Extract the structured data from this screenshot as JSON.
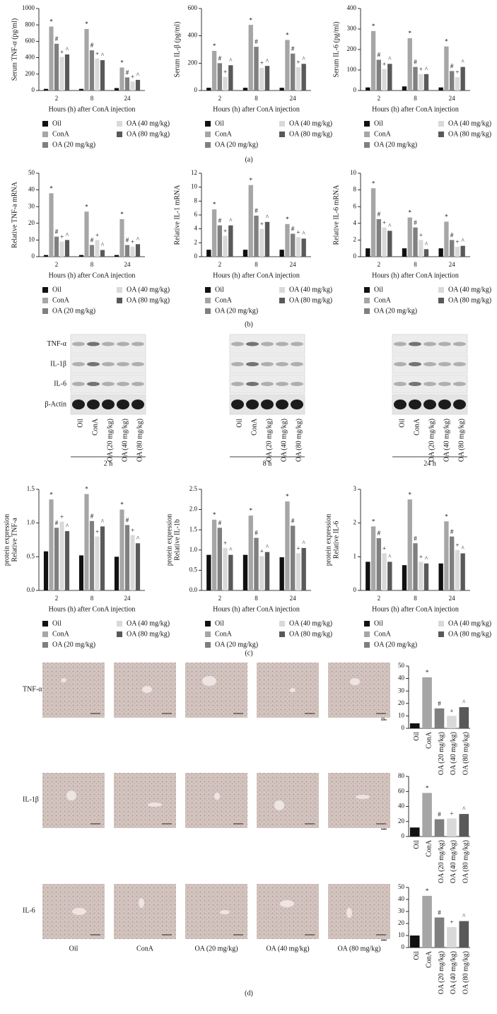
{
  "chart_data": [
    {
      "type": "bar",
      "ylabel": [
        "Serum TNF-α (pg/ml)"
      ],
      "xlabel": "Hours (h) after ConA injection",
      "categories": [
        "2",
        "8",
        "24"
      ],
      "ylim": [
        0,
        1000
      ],
      "yticks": [
        0,
        200,
        400,
        600,
        800,
        1000
      ],
      "series": [
        {
          "name": "Oil",
          "color": "#111111",
          "values": [
            20,
            20,
            30
          ]
        },
        {
          "name": "ConA",
          "color": "#a6a6a6",
          "values": [
            780,
            750,
            280
          ],
          "annotation": "*"
        },
        {
          "name": "OA (20 mg/kg)",
          "color": "#7f7f7f",
          "values": [
            570,
            490,
            160
          ],
          "annotation": "#"
        },
        {
          "name": "OA (40 mg/kg)",
          "color": "#d9d9d9",
          "values": [
            410,
            390,
            110
          ],
          "annotation": "+"
        },
        {
          "name": "OA (80 mg/kg)",
          "color": "#595959",
          "values": [
            440,
            370,
            130
          ],
          "annotation": "^"
        }
      ]
    },
    {
      "type": "bar",
      "ylabel": [
        "Serum IL-β (pg/ml)"
      ],
      "xlabel": "Hours (h) after ConA injection",
      "categories": [
        "2",
        "8",
        "24"
      ],
      "ylim": [
        0,
        600
      ],
      "yticks": [
        0,
        200,
        400,
        600
      ],
      "series": [
        {
          "name": "Oil",
          "color": "#111111",
          "values": [
            20,
            20,
            20
          ]
        },
        {
          "name": "ConA",
          "color": "#a6a6a6",
          "values": [
            290,
            480,
            370
          ],
          "annotation": "*"
        },
        {
          "name": "OA (20 mg/kg)",
          "color": "#7f7f7f",
          "values": [
            200,
            320,
            270
          ],
          "annotation": "#"
        },
        {
          "name": "OA (40 mg/kg)",
          "color": "#d9d9d9",
          "values": [
            100,
            165,
            170
          ],
          "annotation": "+"
        },
        {
          "name": "OA (80 mg/kg)",
          "color": "#595959",
          "values": [
            185,
            180,
            195
          ],
          "annotation": "^"
        }
      ]
    },
    {
      "type": "bar",
      "ylabel": [
        "Serum IL-6 (pg/ml)"
      ],
      "xlabel": "Hours (h) after ConA injection",
      "categories": [
        "2",
        "8",
        "24"
      ],
      "ylim": [
        0,
        400
      ],
      "yticks": [
        0,
        100,
        200,
        300,
        400
      ],
      "series": [
        {
          "name": "Oil",
          "color": "#111111",
          "values": [
            15,
            20,
            15
          ]
        },
        {
          "name": "ConA",
          "color": "#a6a6a6",
          "values": [
            290,
            255,
            215
          ],
          "annotation": "*"
        },
        {
          "name": "OA (20 mg/kg)",
          "color": "#7f7f7f",
          "values": [
            150,
            115,
            95
          ],
          "annotation": "#"
        },
        {
          "name": "OA (40 mg/kg)",
          "color": "#d9d9d9",
          "values": [
            105,
            80,
            65
          ],
          "annotation": "+"
        },
        {
          "name": "OA (80 mg/kg)",
          "color": "#595959",
          "values": [
            130,
            80,
            115
          ],
          "annotation": "^"
        }
      ]
    },
    {
      "type": "bar",
      "ylabel": [
        "Relative TNF-a mRNA"
      ],
      "xlabel": "Hours (h) after ConA injection",
      "categories": [
        "2",
        "8",
        "24"
      ],
      "ylim": [
        0,
        50
      ],
      "yticks": [
        0,
        10,
        20,
        30,
        40,
        50
      ],
      "series": [
        {
          "name": "Oil",
          "color": "#111111",
          "values": [
            1,
            1,
            1
          ]
        },
        {
          "name": "ConA",
          "color": "#a6a6a6",
          "values": [
            38,
            27,
            22.5
          ],
          "annotation": "*"
        },
        {
          "name": "OA (20 mg/kg)",
          "color": "#7f7f7f",
          "values": [
            12,
            7,
            7
          ],
          "annotation": "#"
        },
        {
          "name": "OA (40 mg/kg)",
          "color": "#d9d9d9",
          "values": [
            9,
            10,
            6
          ],
          "annotation": "+"
        },
        {
          "name": "OA (80 mg/kg)",
          "color": "#595959",
          "values": [
            10,
            4,
            7.5
          ],
          "annotation": "^"
        }
      ]
    },
    {
      "type": "bar",
      "ylabel": [
        "Relative IL-1 mRNA"
      ],
      "xlabel": "Hours (h) after ConA injection",
      "categories": [
        "2",
        "8",
        "24"
      ],
      "ylim": [
        0,
        12
      ],
      "yticks": [
        0,
        2,
        4,
        6,
        8,
        10,
        12
      ],
      "series": [
        {
          "name": "Oil",
          "color": "#111111",
          "values": [
            1,
            1,
            1
          ]
        },
        {
          "name": "ConA",
          "color": "#a6a6a6",
          "values": [
            6.8,
            10.3,
            4.7
          ],
          "annotation": "*"
        },
        {
          "name": "OA (20 mg/kg)",
          "color": "#7f7f7f",
          "values": [
            4.5,
            5.9,
            3.3
          ],
          "annotation": "#"
        },
        {
          "name": "OA (40 mg/kg)",
          "color": "#d9d9d9",
          "values": [
            3,
            4,
            2.8
          ],
          "annotation": "+"
        },
        {
          "name": "OA (80 mg/kg)",
          "color": "#595959",
          "values": [
            4.5,
            5,
            2.6
          ],
          "annotation": "^"
        }
      ]
    },
    {
      "type": "bar",
      "ylabel": [
        "Relative IL-6 mRNA"
      ],
      "xlabel": "Hours (h) after ConA injection",
      "categories": [
        "2",
        "8",
        "24"
      ],
      "ylim": [
        0,
        10
      ],
      "yticks": [
        0,
        2,
        4,
        6,
        8,
        10
      ],
      "series": [
        {
          "name": "Oil",
          "color": "#111111",
          "values": [
            1,
            1,
            1
          ]
        },
        {
          "name": "ConA",
          "color": "#a6a6a6",
          "values": [
            8.2,
            4.7,
            4.2
          ],
          "annotation": "*"
        },
        {
          "name": "OA (20 mg/kg)",
          "color": "#7f7f7f",
          "values": [
            4.5,
            3.5,
            2
          ],
          "annotation": "#"
        },
        {
          "name": "OA (40 mg/kg)",
          "color": "#d9d9d9",
          "values": [
            3.5,
            2,
            1.2
          ],
          "annotation": "+"
        },
        {
          "name": "OA (80 mg/kg)",
          "color": "#595959",
          "values": [
            3.1,
            0.9,
            1.3
          ],
          "annotation": "^"
        }
      ]
    },
    {
      "type": "bar",
      "ylabel": [
        "Relative TNF-a",
        "protein expression"
      ],
      "xlabel": "Hours (h) after ConA injection",
      "categories": [
        "2",
        "8",
        "24"
      ],
      "ylim": [
        0,
        1.5
      ],
      "yticks": [
        {
          "value": 0,
          "label": "0.0"
        },
        {
          "value": 0.5,
          "label": "0.5"
        },
        {
          "value": 1,
          "label": "1.0"
        },
        {
          "value": 1.5,
          "label": "1.5"
        }
      ],
      "series": [
        {
          "name": "Oil",
          "color": "#111111",
          "values": [
            0.58,
            0.52,
            0.5
          ]
        },
        {
          "name": "ConA",
          "color": "#a6a6a6",
          "values": [
            1.35,
            1.43,
            1.2
          ],
          "annotation": "*"
        },
        {
          "name": "OA (20 mg/kg)",
          "color": "#7f7f7f",
          "values": [
            0.93,
            1.03,
            0.97
          ],
          "annotation": "#"
        },
        {
          "name": "OA (40 mg/kg)",
          "color": "#d9d9d9",
          "values": [
            1.02,
            0.8,
            0.82
          ],
          "annotation": "+"
        },
        {
          "name": "OA (80 mg/kg)",
          "color": "#595959",
          "values": [
            0.88,
            0.95,
            0.7
          ],
          "annotation": "^"
        }
      ]
    },
    {
      "type": "bar",
      "ylabel": [
        "Relative IL-1b",
        "protein expression"
      ],
      "xlabel": "Hours (h) after ConA injection",
      "categories": [
        "2",
        "8",
        "24"
      ],
      "ylim": [
        0,
        2.5
      ],
      "yticks": [
        {
          "value": 0,
          "label": "0.0"
        },
        {
          "value": 0.5,
          "label": "0.5"
        },
        {
          "value": 1,
          "label": "1.0"
        },
        {
          "value": 1.5,
          "label": "1.5"
        },
        {
          "value": 2,
          "label": "2.0"
        },
        {
          "value": 2.5,
          "label": "2.5"
        }
      ],
      "series": [
        {
          "name": "Oil",
          "color": "#111111",
          "values": [
            0.88,
            0.88,
            0.82
          ]
        },
        {
          "name": "ConA",
          "color": "#a6a6a6",
          "values": [
            1.75,
            1.85,
            2.2
          ],
          "annotation": "*"
        },
        {
          "name": "OA (20 mg/kg)",
          "color": "#7f7f7f",
          "values": [
            1.55,
            1.3,
            1.6
          ],
          "annotation": "#"
        },
        {
          "name": "OA (40 mg/kg)",
          "color": "#d9d9d9",
          "values": [
            1.05,
            0.85,
            0.92
          ],
          "annotation": "+"
        },
        {
          "name": "OA (80 mg/kg)",
          "color": "#595959",
          "values": [
            0.88,
            0.95,
            1.05
          ],
          "annotation": "^"
        }
      ]
    },
    {
      "type": "bar",
      "ylabel": [
        "Relative IL-6",
        "protein expression"
      ],
      "xlabel": "Hours (h) after ConA injection",
      "categories": [
        "2",
        "8",
        "24"
      ],
      "ylim": [
        0,
        3
      ],
      "yticks": [
        0,
        1,
        2,
        3
      ],
      "series": [
        {
          "name": "Oil",
          "color": "#111111",
          "values": [
            0.85,
            0.75,
            0.8
          ]
        },
        {
          "name": "ConA",
          "color": "#a6a6a6",
          "values": [
            1.9,
            2.7,
            2.05
          ],
          "annotation": "*"
        },
        {
          "name": "OA (20 mg/kg)",
          "color": "#7f7f7f",
          "values": [
            1.55,
            1.4,
            1.6
          ],
          "annotation": "#"
        },
        {
          "name": "OA (40 mg/kg)",
          "color": "#d9d9d9",
          "values": [
            1.1,
            0.85,
            1.2
          ],
          "annotation": "+"
        },
        {
          "name": "OA (80 mg/kg)",
          "color": "#595959",
          "values": [
            0.85,
            0.8,
            1.1
          ],
          "annotation": "^"
        }
      ]
    },
    {
      "type": "column",
      "ylabel": [
        "Positive rate (%)"
      ],
      "categories": [
        "Oil",
        "ConA",
        "OA (20 mg/kg)",
        "OA (40 mg/kg)",
        "OA (80 mg/kg)"
      ],
      "values": [
        4,
        41,
        16,
        10,
        17
      ],
      "colors": [
        "#111111",
        "#a6a6a6",
        "#7f7f7f",
        "#d9d9d9",
        "#595959"
      ],
      "annotations": [
        null,
        "*",
        "#",
        "+",
        "^"
      ],
      "ylim": [
        0,
        50
      ],
      "yticks": [
        0,
        10,
        20,
        30,
        40,
        50
      ]
    },
    {
      "type": "column",
      "ylabel": [
        "Positive rate (%)"
      ],
      "categories": [
        "Oil",
        "ConA",
        "OA (20 mg/kg)",
        "OA (40 mg/kg)",
        "OA (80 mg/kg)"
      ],
      "values": [
        12,
        58,
        23,
        24,
        30
      ],
      "colors": [
        "#111111",
        "#a6a6a6",
        "#7f7f7f",
        "#d9d9d9",
        "#595959"
      ],
      "annotations": [
        null,
        "*",
        "#",
        "+",
        "^"
      ],
      "ylim": [
        0,
        80
      ],
      "yticks": [
        0,
        20,
        40,
        60,
        80
      ]
    },
    {
      "type": "column",
      "ylabel": [
        "Positive rate (%)"
      ],
      "categories": [
        "Oil",
        "ConA",
        "OA (20 mg/kg)",
        "OA (40 mg/kg)",
        "OA (80 mg/kg)"
      ],
      "values": [
        10,
        43,
        25,
        17,
        22
      ],
      "colors": [
        "#111111",
        "#a6a6a6",
        "#7f7f7f",
        "#d9d9d9",
        "#595959"
      ],
      "annotations": [
        null,
        "*",
        "#",
        "+",
        "^"
      ],
      "ylim": [
        0,
        50
      ],
      "yticks": [
        0,
        10,
        20,
        30,
        40,
        50
      ]
    }
  ],
  "blot": {
    "rows": [
      "TNF-α",
      "IL-1β",
      "IL-6",
      "β-Actin"
    ],
    "lanes": [
      "Oil",
      "ConA",
      "OA (20 mg/kg)",
      "OA (40 mg/kg)",
      "OA (80 mg/kg)"
    ],
    "times": [
      "2 h",
      "8 h",
      "24 h"
    ]
  },
  "ihc": {
    "rows": [
      "TNF-α",
      "IL-1β",
      "IL-6"
    ],
    "columns": [
      "Oil",
      "ConA",
      "OA (20 mg/kg)",
      "OA (40 mg/kg)",
      "OA (80 mg/kg)"
    ]
  },
  "panel_labels": [
    "(a)",
    "(b)",
    "(c)",
    "(d)"
  ]
}
